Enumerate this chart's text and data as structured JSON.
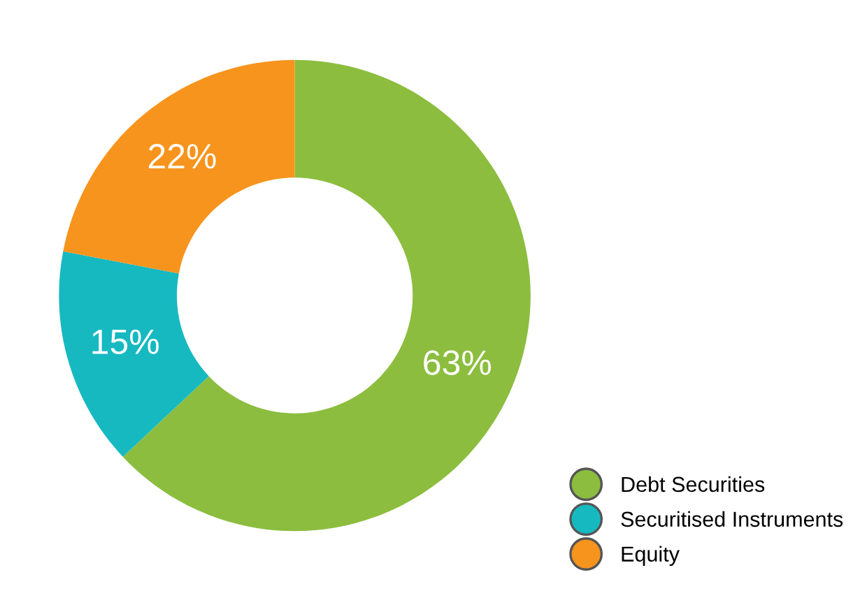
{
  "chart_data": {
    "type": "donut",
    "categories": [
      "Debt Securities",
      "Securitised Instruments",
      "Equity"
    ],
    "values": [
      63,
      15,
      22
    ],
    "colors": [
      "#8cbd3f",
      "#17b9c1",
      "#f7941d"
    ],
    "value_labels": [
      "63%",
      "15%",
      "22%"
    ],
    "legend": "bottom right"
  }
}
